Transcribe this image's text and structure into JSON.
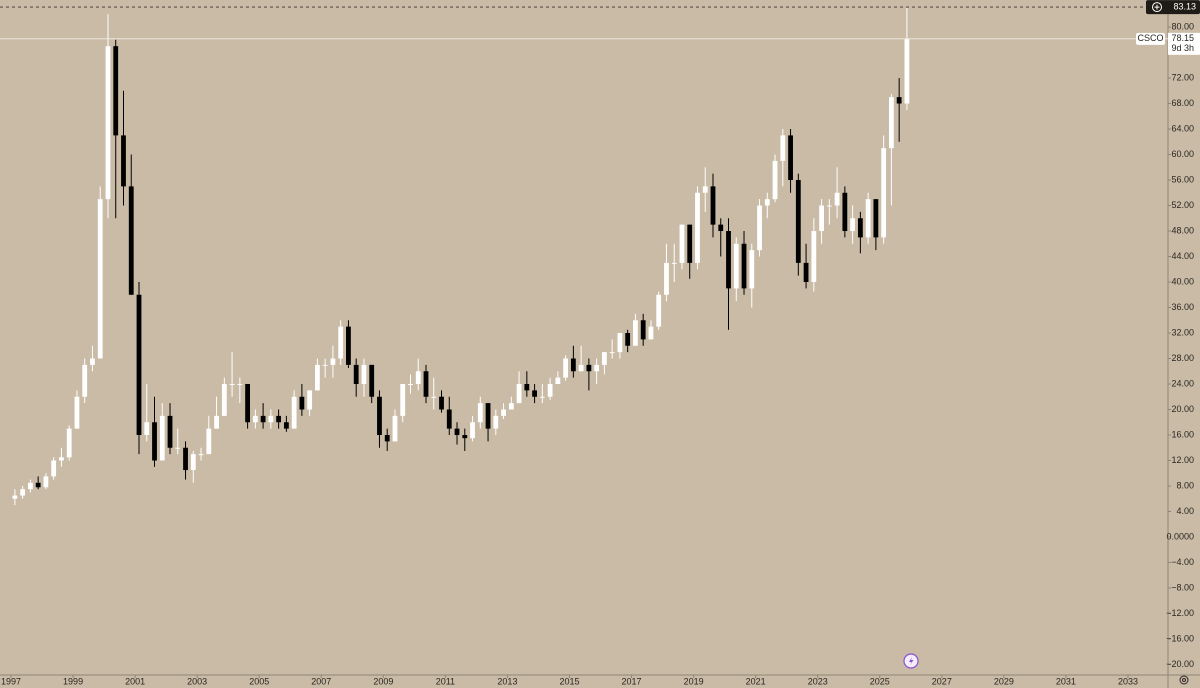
{
  "chart_data": {
    "type": "candlestick",
    "symbol": "CSCO",
    "countdown": "9d 3h",
    "crosshair_price": 83.13,
    "up_color": "#ffffff",
    "down_color": "#000000",
    "background": "#c9bba6",
    "x": [
      1997,
      1997.25,
      1997.5,
      1997.75,
      1998,
      1998.25,
      1998.5,
      1998.75,
      1999,
      1999.25,
      1999.5,
      1999.75,
      2000,
      2000.25,
      2000.5,
      2000.75,
      2001,
      2001.25,
      2001.5,
      2001.75,
      2002,
      2002.25,
      2002.5,
      2002.75,
      2003,
      2003.25,
      2003.5,
      2003.75,
      2004,
      2004.25,
      2004.5,
      2004.75,
      2005,
      2005.25,
      2005.5,
      2005.75,
      2006,
      2006.25,
      2006.5,
      2006.75,
      2007,
      2007.25,
      2007.5,
      2007.75,
      2008,
      2008.25,
      2008.5,
      2008.75,
      2009,
      2009.25,
      2009.5,
      2009.75,
      2010,
      2010.25,
      2010.5,
      2010.75,
      2011,
      2011.25,
      2011.5,
      2011.75,
      2012,
      2012.25,
      2012.5,
      2012.75,
      2013,
      2013.25,
      2013.5,
      2013.75,
      2014,
      2014.25,
      2014.5,
      2014.75,
      2015,
      2015.25,
      2015.5,
      2015.75,
      2016,
      2016.25,
      2016.5,
      2016.75,
      2017,
      2017.25,
      2017.5,
      2017.75,
      2018,
      2018.25,
      2018.5,
      2018.75,
      2019,
      2019.25,
      2019.5,
      2019.75,
      2020,
      2020.25,
      2020.5,
      2020.75,
      2021,
      2021.25,
      2021.5,
      2021.75,
      2022,
      2022.25,
      2022.5,
      2022.75,
      2023,
      2023.25,
      2023.5,
      2023.75,
      2024,
      2024.25,
      2024.5,
      2024.75,
      2025,
      2025.25,
      2025.5,
      2025.75
    ],
    "open": [
      6,
      6.5,
      7.5,
      8.5,
      7.8,
      9.5,
      12,
      12.5,
      17,
      22,
      27,
      28,
      53,
      77,
      63,
      55,
      38,
      16,
      18,
      12,
      19,
      14,
      14,
      10.5,
      13,
      13,
      17,
      19,
      24,
      24,
      24,
      18,
      19,
      18,
      19,
      18,
      17,
      22,
      20,
      23,
      27,
      27,
      28,
      33,
      27,
      24,
      27,
      22,
      16,
      15,
      19,
      24,
      24,
      26,
      22,
      22,
      20,
      17,
      16,
      15.5,
      18,
      21,
      17,
      19,
      20,
      21,
      24,
      23,
      22,
      22,
      24,
      25,
      28,
      26,
      27,
      26,
      27,
      29,
      29,
      32,
      30,
      34,
      31,
      33,
      38,
      43,
      43,
      49,
      43,
      54,
      55,
      49,
      48,
      39,
      46,
      39,
      45,
      52,
      53,
      59,
      63,
      56,
      43,
      40,
      48,
      52,
      52,
      54,
      48,
      50,
      47,
      53,
      47,
      61,
      69,
      68
    ],
    "high": [
      7.5,
      8,
      9,
      9.5,
      10,
      12.5,
      14,
      17.5,
      23,
      28,
      30,
      55,
      82,
      78,
      70,
      60,
      40,
      24,
      22,
      21,
      21,
      17,
      15,
      13.5,
      14,
      19,
      22,
      25,
      29,
      25,
      24,
      20,
      21,
      20,
      20,
      19,
      23,
      24,
      23,
      28,
      28,
      30,
      34,
      34,
      28,
      28,
      27,
      23,
      17,
      20,
      24,
      25.5,
      28,
      27,
      25,
      23,
      22,
      18,
      17,
      19,
      22,
      21,
      20,
      21,
      22,
      26,
      26,
      24,
      24,
      25,
      26,
      28.5,
      30,
      30,
      28,
      28,
      29,
      31,
      32,
      32.5,
      35,
      35,
      34,
      38.5,
      46,
      46,
      49,
      49,
      55,
      58,
      57,
      50,
      50,
      47,
      48,
      46,
      53,
      54,
      60,
      64,
      64,
      57,
      46,
      50,
      53,
      53,
      58,
      55,
      52,
      51,
      54,
      53,
      63,
      69.5,
      72,
      83
    ],
    "low": [
      5,
      6,
      7,
      7.5,
      7.5,
      9,
      11,
      12,
      17,
      21,
      26,
      28,
      50,
      50,
      52,
      38,
      13,
      15,
      11,
      12,
      13,
      13,
      9,
      8.5,
      12,
      13,
      17,
      19,
      22,
      21,
      17,
      17,
      17,
      17,
      17,
      16.5,
      17,
      19,
      19,
      23,
      25,
      25,
      27,
      26.5,
      22,
      22,
      21,
      14,
      13.5,
      15,
      18,
      22.5,
      23,
      21,
      20,
      19.5,
      16,
      14.5,
      13.5,
      15,
      17,
      15,
      16,
      18.5,
      20,
      21,
      22,
      21,
      21,
      21.5,
      24,
      24.5,
      25,
      26,
      23,
      24,
      25.5,
      28,
      28,
      29,
      30,
      30,
      31,
      32.5,
      37,
      40,
      42,
      40.5,
      42,
      51,
      47,
      44,
      32.5,
      37,
      38,
      36,
      44,
      50,
      52.5,
      55,
      54,
      41,
      39,
      38.5,
      46,
      49,
      50,
      47,
      46,
      44.5,
      46,
      45,
      46,
      52,
      62,
      67
    ],
    "close": [
      6.5,
      7.5,
      8.5,
      7.8,
      9.5,
      12,
      12.5,
      17,
      22,
      27,
      28,
      53,
      77,
      63,
      55,
      38,
      16,
      18,
      12,
      19,
      14,
      14,
      10.5,
      13,
      13,
      17,
      19,
      24,
      24,
      24,
      18,
      19,
      18,
      19,
      18,
      17,
      22,
      20,
      23,
      27,
      27,
      28,
      33,
      27,
      24,
      27,
      22,
      16,
      15,
      19,
      24,
      24,
      26,
      22,
      22,
      20,
      17,
      16,
      15.5,
      18,
      21,
      17,
      19,
      20,
      21,
      24,
      23,
      22,
      22,
      24,
      25,
      28,
      26,
      27,
      26,
      27,
      29,
      29,
      32,
      30,
      34,
      31,
      33,
      38,
      43,
      43,
      49,
      43,
      54,
      55,
      49,
      48,
      39,
      46,
      39,
      45,
      52,
      53,
      59,
      63,
      56,
      43,
      40,
      48,
      52,
      52,
      54,
      48,
      50,
      47,
      53,
      47,
      61,
      69,
      68,
      78.15
    ],
    "xlim": [
      1996.645,
      2034.29
    ],
    "xticks": [
      1997,
      1999,
      2001,
      2003,
      2005,
      2007,
      2009,
      2011,
      2013,
      2015,
      2017,
      2019,
      2021,
      2023,
      2025,
      2027,
      2029,
      2031,
      2033
    ],
    "ylim": [
      -21.65,
      84.24
    ],
    "yticks": [
      {
        "value": 80,
        "label": "80.00"
      },
      {
        "value": 72,
        "label": "72.00"
      },
      {
        "value": 68,
        "label": "68.00"
      },
      {
        "value": 64,
        "label": "64.00"
      },
      {
        "value": 60,
        "label": "60.00"
      },
      {
        "value": 56,
        "label": "56.00"
      },
      {
        "value": 52,
        "label": "52.00"
      },
      {
        "value": 48,
        "label": "48.00"
      },
      {
        "value": 44,
        "label": "44.00"
      },
      {
        "value": 40,
        "label": "40.00"
      },
      {
        "value": 36,
        "label": "36.00"
      },
      {
        "value": 32,
        "label": "32.00"
      },
      {
        "value": 28,
        "label": "28.00"
      },
      {
        "value": 24,
        "label": "24.00"
      },
      {
        "value": 20,
        "label": "20.00"
      },
      {
        "value": 16,
        "label": "16.00"
      },
      {
        "value": 12,
        "label": "12.00"
      },
      {
        "value": 8,
        "label": "8.00"
      },
      {
        "value": 4,
        "label": "4.00"
      },
      {
        "value": 0,
        "label": "0.0000"
      },
      {
        "value": -4,
        "label": "−4.00"
      },
      {
        "value": -8,
        "label": "−8.00"
      },
      {
        "value": -12,
        "label": "−12.00"
      },
      {
        "value": -16,
        "label": "−16.00"
      },
      {
        "value": -20,
        "label": "−20.00"
      }
    ]
  }
}
